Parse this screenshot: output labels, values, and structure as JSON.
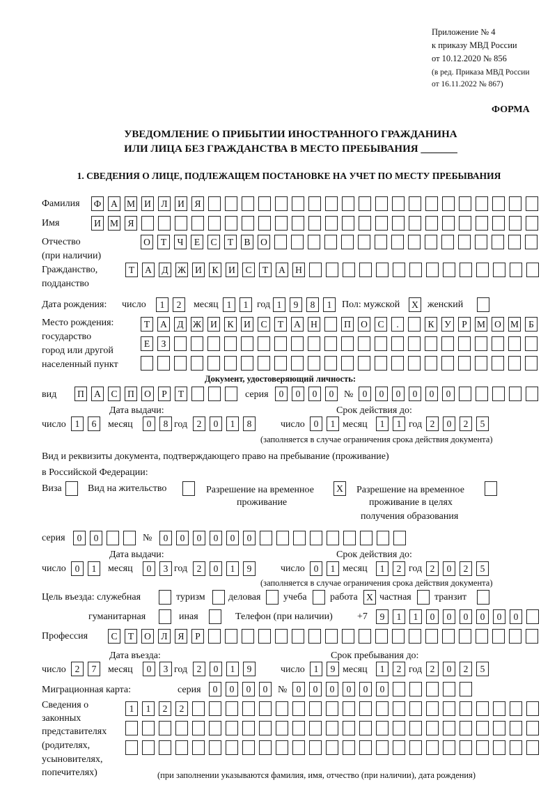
{
  "header": {
    "line1": "Приложение № 4",
    "line2": "к приказу МВД России",
    "line3": "от 10.12.2020 № 856",
    "line4": "(в ред. Приказа МВД России",
    "line5": "от 16.11.2022 № 867)",
    "form": "ФОРМА"
  },
  "title": {
    "line1": "УВЕДОМЛЕНИЕ О ПРИБЫТИИ ИНОСТРАННОГО ГРАЖДАНИНА",
    "line2": "ИЛИ ЛИЦА БЕЗ ГРАЖДАНСТВА В МЕСТО ПРЕБЫВАНИЯ _______"
  },
  "section1": "1. СВЕДЕНИЯ О ЛИЦЕ, ПОДЛЕЖАЩЕМ ПОСТАНОВКЕ НА УЧЕТ ПО МЕСТУ ПРЕБЫВАНИЯ",
  "labels": {
    "surname": "Фамилия",
    "name": "Имя",
    "patronymic": "Отчество",
    "patronymic2": "(при наличии)",
    "citizenship": "Гражданство,",
    "citizenship2": "подданство",
    "birth_date": "Дата рождения:",
    "day": "число",
    "month": "месяц",
    "year": "год",
    "sex": "Пол: мужской",
    "female": "женский",
    "birth_place": "Место рождения:",
    "birth_place2": "государство",
    "birth_place3": "город или другой",
    "birth_place4": "населенный пункт",
    "id_doc": "Документ, удостоверяющий личность:",
    "kind": "вид",
    "series": "серия",
    "number": "№",
    "issue_date": "Дата выдачи:",
    "valid_until": "Срок действия до:",
    "valid_note": "(заполняется в случае ограничения срока действия документа)",
    "right_doc": "Вид и реквизиты документа, подтверждающего право на пребывание (проживание)",
    "right_doc2": "в Российской Федерации:",
    "visa": "Виза",
    "residence": "Вид на жительство",
    "temp_res": "Разрешение на временное",
    "temp_res2": "проживание",
    "temp_edu": "Разрешение на временное",
    "temp_edu2": "проживание в целях",
    "temp_edu3": "получения образования",
    "purpose": "Цель въезда: служебная",
    "tourism": "туризм",
    "business": "деловая",
    "study": "учеба",
    "work": "работа",
    "private": "частная",
    "transit": "транзит",
    "humanitarian": "гуманитарная",
    "other": "иная",
    "phone": "Телефон (при наличии)",
    "phone_prefix": "+7",
    "profession": "Профессия",
    "entry_date": "Дата въезда:",
    "stay_until": "Срок пребывания до:",
    "migration_card": "Миграционная карта:",
    "reps1": "Сведения о",
    "reps2": "законных",
    "reps3": "представителях",
    "reps4": "(родителях,",
    "reps5": "усыновителях,",
    "reps6": "попечителях)",
    "reps_note": "(при заполнении указываются фамилия, имя, отчество (при наличии), дата рождения)"
  },
  "fields": {
    "surname": "ФАМИЛИЯ",
    "name": "ИМЯ",
    "patronymic": "ОТЧЕСТВО",
    "citizenship": "ТАДЖИКИСТАН",
    "birth_day": "12",
    "birth_month": "11",
    "birth_year": "1981",
    "sex_male": "X",
    "sex_female": "",
    "birth_place1": "ТАДЖИКИСТАН ПОС. КУРМОМБ",
    "birth_place2": "ЕЗ",
    "birth_place3": "",
    "doc_kind": "ПАСПОРТ",
    "doc_series": "0000",
    "doc_number": "000000",
    "doc_issue_day": "16",
    "doc_issue_month": "08",
    "doc_issue_year": "2018",
    "doc_valid_day": "01",
    "doc_valid_month": "11",
    "doc_valid_year": "2025",
    "visa": "",
    "residence": "",
    "temp_res": "X",
    "temp_edu": "",
    "right_series": "00",
    "right_number": "000000",
    "right_issue_day": "01",
    "right_issue_month": "03",
    "right_issue_year": "2019",
    "right_valid_day": "01",
    "right_valid_month": "12",
    "right_valid_year": "2025",
    "p_service": "",
    "p_tourism": "",
    "p_business": "",
    "p_study": "",
    "p_work": "X",
    "p_private": "",
    "p_transit": "",
    "p_humanitarian": "",
    "p_other": "",
    "phone": "911000000",
    "profession": "СТОЛЯР",
    "entry_day": "27",
    "entry_month": "03",
    "entry_year": "2019",
    "stay_day": "19",
    "stay_month": "12",
    "stay_year": "2025",
    "mc_series": "0000",
    "mc_number": "000000",
    "reps1": "1122",
    "reps2": "",
    "reps3": ""
  }
}
